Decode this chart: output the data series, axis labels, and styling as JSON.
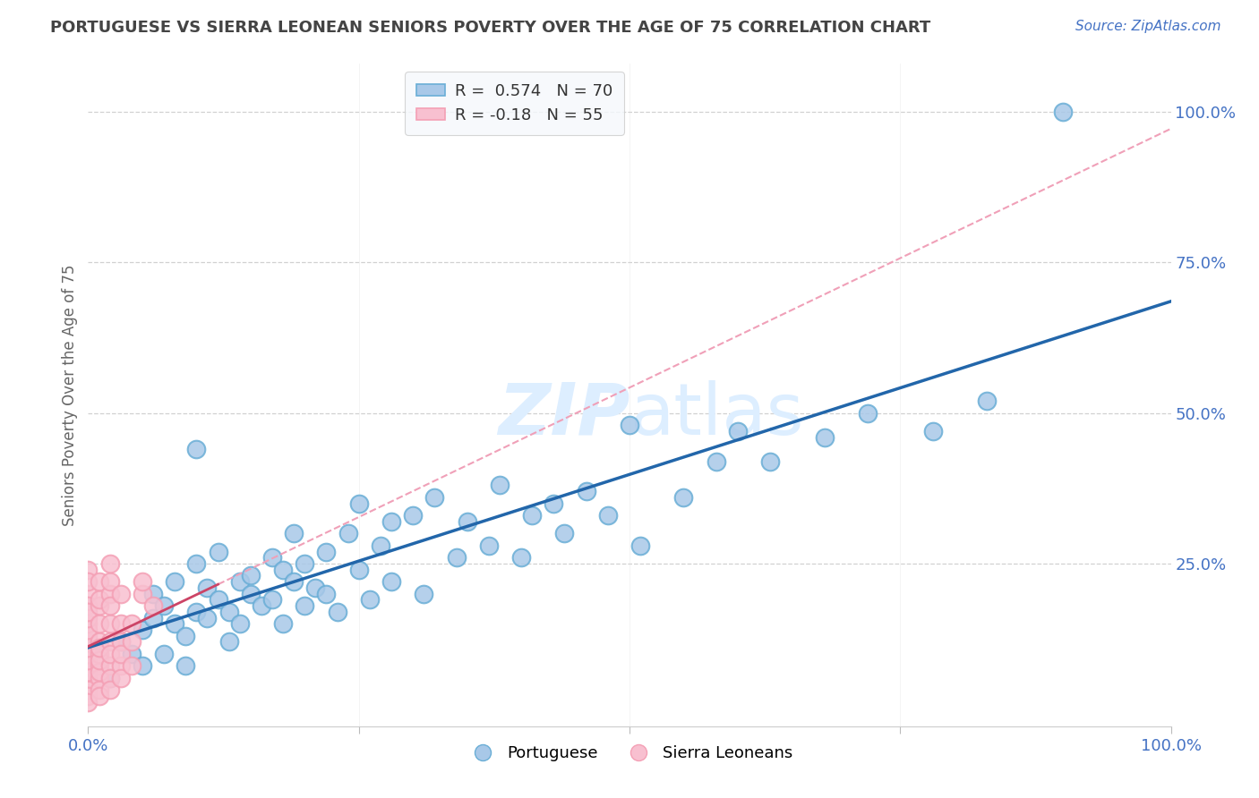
{
  "title": "PORTUGUESE VS SIERRA LEONEAN SENIORS POVERTY OVER THE AGE OF 75 CORRELATION CHART",
  "source": "Source: ZipAtlas.com",
  "ylabel": "Seniors Poverty Over the Age of 75",
  "right_ytick_labels": [
    "100.0%",
    "75.0%",
    "50.0%",
    "25.0%"
  ],
  "right_ytick_values": [
    1.0,
    0.75,
    0.5,
    0.25
  ],
  "xlim": [
    0.0,
    1.0
  ],
  "ylim": [
    -0.02,
    1.08
  ],
  "blue_R": 0.574,
  "blue_N": 70,
  "pink_R": -0.18,
  "pink_N": 55,
  "blue_color": "#a8c8e8",
  "blue_edge_color": "#6aaed6",
  "pink_color": "#f8c0d0",
  "pink_edge_color": "#f4a0b5",
  "blue_line_color": "#2266aa",
  "pink_line_solid_color": "#cc4466",
  "pink_line_dash_color": "#f0a0b8",
  "grid_color": "#cccccc",
  "background_color": "#ffffff",
  "title_color": "#444444",
  "axis_label_color": "#666666",
  "tick_color": "#4472c4",
  "watermark_color": "#ddeeff",
  "legend_bg": "#f5f8fc",
  "legend_edge": "#cccccc",
  "blue_scatter": [
    [
      0.02,
      0.06
    ],
    [
      0.03,
      0.12
    ],
    [
      0.04,
      0.1
    ],
    [
      0.05,
      0.08
    ],
    [
      0.05,
      0.14
    ],
    [
      0.06,
      0.16
    ],
    [
      0.06,
      0.2
    ],
    [
      0.07,
      0.1
    ],
    [
      0.07,
      0.18
    ],
    [
      0.08,
      0.22
    ],
    [
      0.08,
      0.15
    ],
    [
      0.09,
      0.13
    ],
    [
      0.09,
      0.08
    ],
    [
      0.1,
      0.17
    ],
    [
      0.1,
      0.25
    ],
    [
      0.11,
      0.21
    ],
    [
      0.11,
      0.16
    ],
    [
      0.12,
      0.19
    ],
    [
      0.12,
      0.27
    ],
    [
      0.13,
      0.17
    ],
    [
      0.13,
      0.12
    ],
    [
      0.14,
      0.22
    ],
    [
      0.14,
      0.15
    ],
    [
      0.15,
      0.23
    ],
    [
      0.15,
      0.2
    ],
    [
      0.16,
      0.18
    ],
    [
      0.17,
      0.26
    ],
    [
      0.17,
      0.19
    ],
    [
      0.18,
      0.15
    ],
    [
      0.18,
      0.24
    ],
    [
      0.19,
      0.3
    ],
    [
      0.19,
      0.22
    ],
    [
      0.2,
      0.18
    ],
    [
      0.2,
      0.25
    ],
    [
      0.21,
      0.21
    ],
    [
      0.22,
      0.27
    ],
    [
      0.22,
      0.2
    ],
    [
      0.23,
      0.17
    ],
    [
      0.24,
      0.3
    ],
    [
      0.25,
      0.24
    ],
    [
      0.25,
      0.35
    ],
    [
      0.26,
      0.19
    ],
    [
      0.27,
      0.28
    ],
    [
      0.28,
      0.32
    ],
    [
      0.28,
      0.22
    ],
    [
      0.3,
      0.33
    ],
    [
      0.31,
      0.2
    ],
    [
      0.32,
      0.36
    ],
    [
      0.34,
      0.26
    ],
    [
      0.35,
      0.32
    ],
    [
      0.37,
      0.28
    ],
    [
      0.38,
      0.38
    ],
    [
      0.4,
      0.26
    ],
    [
      0.41,
      0.33
    ],
    [
      0.43,
      0.35
    ],
    [
      0.44,
      0.3
    ],
    [
      0.46,
      0.37
    ],
    [
      0.48,
      0.33
    ],
    [
      0.5,
      0.48
    ],
    [
      0.51,
      0.28
    ],
    [
      0.55,
      0.36
    ],
    [
      0.58,
      0.42
    ],
    [
      0.6,
      0.47
    ],
    [
      0.63,
      0.42
    ],
    [
      0.68,
      0.46
    ],
    [
      0.72,
      0.5
    ],
    [
      0.78,
      0.47
    ],
    [
      0.83,
      0.52
    ],
    [
      0.9,
      1.0
    ],
    [
      0.1,
      0.44
    ]
  ],
  "pink_scatter": [
    [
      0.0,
      0.05
    ],
    [
      0.0,
      0.08
    ],
    [
      0.0,
      0.1
    ],
    [
      0.0,
      0.12
    ],
    [
      0.0,
      0.06
    ],
    [
      0.0,
      0.04
    ],
    [
      0.0,
      0.07
    ],
    [
      0.0,
      0.03
    ],
    [
      0.0,
      0.09
    ],
    [
      0.0,
      0.11
    ],
    [
      0.0,
      0.13
    ],
    [
      0.0,
      0.15
    ],
    [
      0.0,
      0.2
    ],
    [
      0.0,
      0.18
    ],
    [
      0.0,
      0.24
    ],
    [
      0.0,
      0.14
    ],
    [
      0.0,
      0.16
    ],
    [
      0.0,
      0.22
    ],
    [
      0.0,
      0.02
    ],
    [
      0.0,
      0.17
    ],
    [
      0.01,
      0.08
    ],
    [
      0.01,
      0.12
    ],
    [
      0.01,
      0.15
    ],
    [
      0.01,
      0.18
    ],
    [
      0.01,
      0.22
    ],
    [
      0.01,
      0.1
    ],
    [
      0.01,
      0.06
    ],
    [
      0.01,
      0.04
    ],
    [
      0.01,
      0.03
    ],
    [
      0.01,
      0.07
    ],
    [
      0.01,
      0.09
    ],
    [
      0.01,
      0.11
    ],
    [
      0.01,
      0.19
    ],
    [
      0.02,
      0.08
    ],
    [
      0.02,
      0.12
    ],
    [
      0.02,
      0.15
    ],
    [
      0.02,
      0.2
    ],
    [
      0.02,
      0.06
    ],
    [
      0.02,
      0.04
    ],
    [
      0.02,
      0.18
    ],
    [
      0.02,
      0.22
    ],
    [
      0.02,
      0.1
    ],
    [
      0.02,
      0.25
    ],
    [
      0.03,
      0.12
    ],
    [
      0.03,
      0.08
    ],
    [
      0.03,
      0.15
    ],
    [
      0.03,
      0.2
    ],
    [
      0.03,
      0.1
    ],
    [
      0.03,
      0.06
    ],
    [
      0.04,
      0.08
    ],
    [
      0.04,
      0.12
    ],
    [
      0.04,
      0.15
    ],
    [
      0.05,
      0.2
    ],
    [
      0.05,
      0.22
    ],
    [
      0.06,
      0.18
    ]
  ]
}
